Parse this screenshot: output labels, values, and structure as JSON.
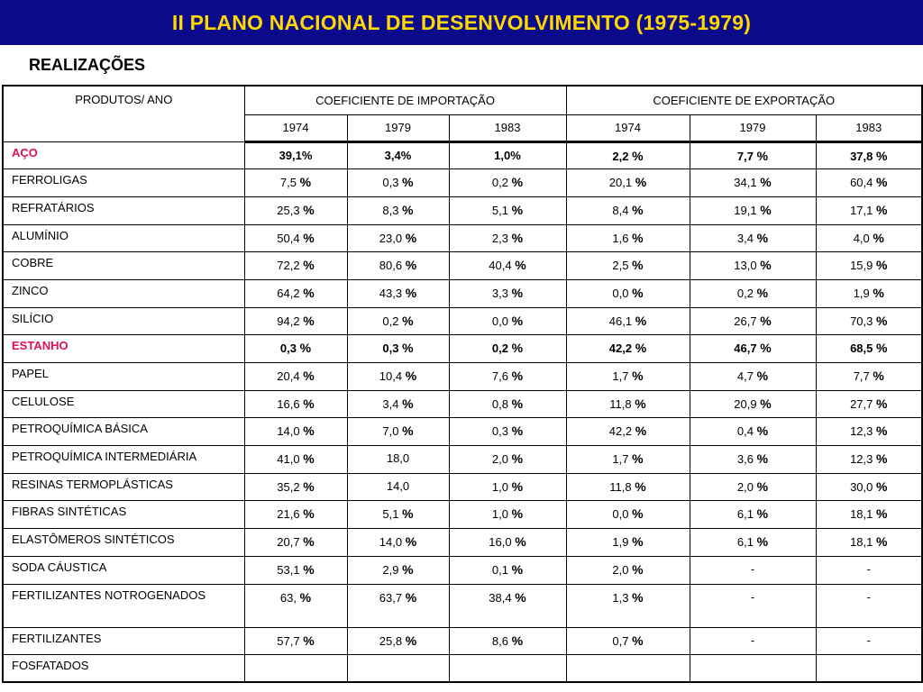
{
  "title": "II PLANO NACIONAL DE DESENVOLVIMENTO (1975-1979)",
  "subtitle": "REALIZAÇÕES",
  "table": {
    "header_product": "PRODUTOS/ ANO",
    "header_import": "COEFICIENTE DE IMPORTAÇÃO",
    "header_export": "COEFICIENTE DE EXPORTAÇÃO",
    "years": [
      "1974",
      "1979",
      "1983",
      "1974",
      "1979",
      "1983"
    ],
    "rows": [
      {
        "product": "AÇO",
        "highlight": true,
        "values": [
          [
            "39,1%",
            ""
          ],
          [
            "3,4%",
            ""
          ],
          [
            "1,0%",
            ""
          ],
          [
            "2,2",
            "%"
          ],
          [
            "7,7",
            "%"
          ],
          [
            "37,8",
            "%"
          ]
        ]
      },
      {
        "product": "FERROLIGAS",
        "values": [
          [
            "7,5",
            "%"
          ],
          [
            "0,3",
            "%"
          ],
          [
            "0,2",
            "%"
          ],
          [
            "20,1",
            "%"
          ],
          [
            "34,1",
            "%"
          ],
          [
            "60,4",
            "%"
          ]
        ]
      },
      {
        "product": "REFRATÁRIOS",
        "values": [
          [
            "25,3",
            "%"
          ],
          [
            "8,3",
            "%"
          ],
          [
            "5,1",
            "%"
          ],
          [
            "8,4",
            "%"
          ],
          [
            "19,1",
            "%"
          ],
          [
            "17,1",
            "%"
          ]
        ]
      },
      {
        "product": "ALUMÍNIO",
        "values": [
          [
            "50,4",
            "%"
          ],
          [
            "23,0",
            "%"
          ],
          [
            "2,3",
            "%"
          ],
          [
            "1,6",
            "%"
          ],
          [
            "3,4",
            "%"
          ],
          [
            "4,0",
            "%"
          ]
        ]
      },
      {
        "product": "COBRE",
        "values": [
          [
            "72,2",
            "%"
          ],
          [
            "80,6",
            "%"
          ],
          [
            "40,4",
            "%"
          ],
          [
            "2,5",
            "%"
          ],
          [
            "13,0",
            "%"
          ],
          [
            "15,9",
            "%"
          ]
        ]
      },
      {
        "product": "ZINCO",
        "values": [
          [
            "64,2",
            "%"
          ],
          [
            "43,3",
            "%"
          ],
          [
            "3,3",
            "%"
          ],
          [
            "0,0",
            "%"
          ],
          [
            "0,2",
            "%"
          ],
          [
            "1,9",
            "%"
          ]
        ]
      },
      {
        "product": "SILÍCIO",
        "values": [
          [
            "94,2",
            "%"
          ],
          [
            "0,2",
            "%"
          ],
          [
            "0,0",
            "%"
          ],
          [
            "46,1",
            "%"
          ],
          [
            "26,7",
            "%"
          ],
          [
            "70,3",
            "%"
          ]
        ]
      },
      {
        "product": "ESTANHO",
        "highlight": true,
        "values": [
          [
            "0,3",
            "%"
          ],
          [
            "0,3",
            "%"
          ],
          [
            "0,2",
            "%"
          ],
          [
            "42,2",
            "%"
          ],
          [
            "46,7",
            "%"
          ],
          [
            "68,5",
            "%"
          ]
        ]
      },
      {
        "product": "PAPEL",
        "values": [
          [
            "20,4",
            "%"
          ],
          [
            "10,4",
            "%"
          ],
          [
            "7,6",
            "%"
          ],
          [
            "1,7",
            "%"
          ],
          [
            "4,7",
            "%"
          ],
          [
            "7,7",
            "%"
          ]
        ]
      },
      {
        "product": "CELULOSE",
        "values": [
          [
            "16,6",
            "%"
          ],
          [
            "3,4",
            "%"
          ],
          [
            "0,8",
            "%"
          ],
          [
            "11,8",
            "%"
          ],
          [
            "20,9",
            "%"
          ],
          [
            "27,7",
            "%"
          ]
        ]
      },
      {
        "product": "PETROQUÍMICA BÁSICA",
        "values": [
          [
            "14,0",
            "%"
          ],
          [
            "7,0",
            "%"
          ],
          [
            "0,3",
            "%"
          ],
          [
            "42,2",
            "%"
          ],
          [
            "0,4",
            "%"
          ],
          [
            "12,3",
            "%"
          ]
        ]
      },
      {
        "product": "PETROQUÍMICA INTERMEDIÁRIA",
        "values": [
          [
            "41,0",
            "%"
          ],
          [
            "18,0",
            ""
          ],
          [
            "2,0",
            "%"
          ],
          [
            "1,7",
            "%"
          ],
          [
            "3,6",
            "%"
          ],
          [
            "12,3",
            "%"
          ]
        ]
      },
      {
        "product": "RESINAS TERMOPLÁSTICAS",
        "values": [
          [
            "35,2",
            "%"
          ],
          [
            "14,0",
            ""
          ],
          [
            "1,0",
            "%"
          ],
          [
            "11,8",
            "%"
          ],
          [
            "2,0",
            "%"
          ],
          [
            "30,0",
            "%"
          ]
        ]
      },
      {
        "product": "FIBRAS SINTÉTICAS",
        "values": [
          [
            "21,6",
            "%"
          ],
          [
            "5,1",
            "%"
          ],
          [
            "1,0",
            "%"
          ],
          [
            "0,0",
            "%"
          ],
          [
            "6,1",
            "%"
          ],
          [
            "18,1",
            "%"
          ]
        ]
      },
      {
        "product": "ELASTÔMEROS SINTÉTICOS",
        "values": [
          [
            "20,7",
            "%"
          ],
          [
            "14,0",
            "%"
          ],
          [
            "16,0",
            "%"
          ],
          [
            "1,9",
            "%"
          ],
          [
            "6,1",
            "%"
          ],
          [
            "18,1",
            "%"
          ]
        ]
      },
      {
        "product": "SODA CÁUSTICA",
        "values": [
          [
            "53,1",
            "%"
          ],
          [
            "2,9",
            "%"
          ],
          [
            "0,1",
            "%"
          ],
          [
            "2,0",
            "%"
          ],
          [
            "-",
            ""
          ],
          [
            "-",
            ""
          ]
        ]
      },
      {
        "product": "FERTILIZANTES NOTROGENADOS",
        "tall": true,
        "values": [
          [
            "63,",
            "%"
          ],
          [
            "63,7",
            "%"
          ],
          [
            "38,4",
            "%"
          ],
          [
            "1,3",
            "%"
          ],
          [
            "-",
            ""
          ],
          [
            "-",
            ""
          ]
        ]
      },
      {
        "product": "FERTILIZANTES",
        "values": [
          [
            "57,7",
            "%"
          ],
          [
            "25,8",
            "%"
          ],
          [
            "8,6",
            "%"
          ],
          [
            "0,7",
            "%"
          ],
          [
            "-",
            ""
          ],
          [
            "-",
            ""
          ]
        ]
      },
      {
        "product": "FOSFATADOS",
        "values": [
          [
            "",
            ""
          ],
          [
            "",
            ""
          ],
          [
            "",
            ""
          ],
          [
            "",
            ""
          ],
          [
            "",
            ""
          ],
          [
            "",
            ""
          ]
        ]
      }
    ]
  }
}
